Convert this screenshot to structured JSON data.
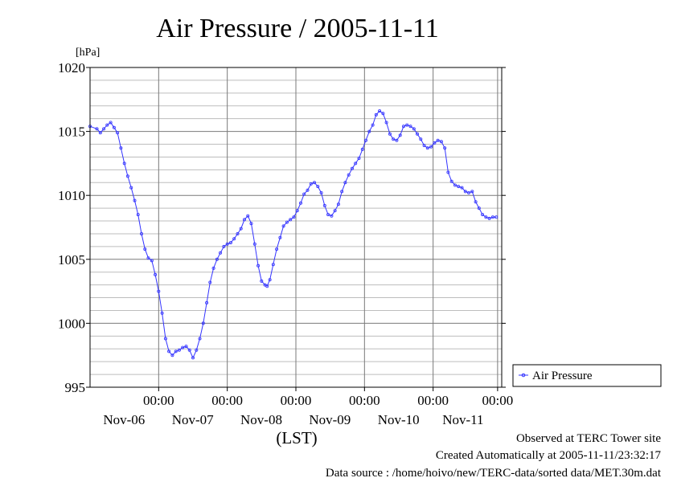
{
  "header": {
    "title": "Air Pressure / 2005-11-11",
    "unit_label": "[hPa]",
    "time_zone_label": "(LST)"
  },
  "legend": {
    "label": "Air Pressure"
  },
  "footer": {
    "line1": "Observed at TERC Tower site",
    "line2": "Created Automatically at 2005-11-11/23:32:17",
    "line3": "Data source : /home/hoivo/new/TERC-data/sorted  data/MET.30m.dat"
  },
  "chart_data": {
    "type": "line",
    "title": "Air Pressure / 2005-11-11",
    "ylabel": "[hPa]",
    "xlabel": "(LST)",
    "ylim": [
      995,
      1020
    ],
    "xlim_days": [
      0,
      6
    ],
    "yticks": [
      995,
      1000,
      1005,
      1010,
      1015,
      1020
    ],
    "xticks": [
      {
        "time": "00:00",
        "date": "Nov-06",
        "day": 1
      },
      {
        "time": "00:00",
        "date": "Nov-07",
        "day": 2
      },
      {
        "time": "00:00",
        "date": "Nov-08",
        "day": 3
      },
      {
        "time": "00:00",
        "date": "Nov-09",
        "day": 4
      },
      {
        "time": "00:00",
        "date": "Nov-10",
        "day": 5
      },
      {
        "time": "00:00",
        "date": "Nov-11",
        "day": 5.94
      }
    ],
    "grid": true,
    "legend_position": "right",
    "line_color": "#3333ff",
    "series": [
      {
        "name": "Air Pressure",
        "points": [
          [
            0.0,
            1015.4
          ],
          [
            0.1,
            1015.2
          ],
          [
            0.15,
            1014.9
          ],
          [
            0.2,
            1015.2
          ],
          [
            0.25,
            1015.5
          ],
          [
            0.3,
            1015.7
          ],
          [
            0.35,
            1015.3
          ],
          [
            0.4,
            1014.9
          ],
          [
            0.45,
            1013.7
          ],
          [
            0.5,
            1012.5
          ],
          [
            0.55,
            1011.5
          ],
          [
            0.6,
            1010.6
          ],
          [
            0.65,
            1009.6
          ],
          [
            0.7,
            1008.5
          ],
          [
            0.75,
            1007.0
          ],
          [
            0.8,
            1005.8
          ],
          [
            0.85,
            1005.1
          ],
          [
            0.9,
            1004.9
          ],
          [
            0.95,
            1003.8
          ],
          [
            1.0,
            1002.5
          ],
          [
            1.05,
            1000.8
          ],
          [
            1.1,
            998.8
          ],
          [
            1.15,
            997.8
          ],
          [
            1.2,
            997.5
          ],
          [
            1.25,
            997.8
          ],
          [
            1.3,
            997.9
          ],
          [
            1.35,
            998.1
          ],
          [
            1.4,
            998.2
          ],
          [
            1.45,
            997.9
          ],
          [
            1.5,
            997.3
          ],
          [
            1.55,
            997.9
          ],
          [
            1.6,
            998.8
          ],
          [
            1.65,
            1000.0
          ],
          [
            1.7,
            1001.6
          ],
          [
            1.75,
            1003.2
          ],
          [
            1.8,
            1004.3
          ],
          [
            1.85,
            1005.0
          ],
          [
            1.9,
            1005.5
          ],
          [
            1.95,
            1006.0
          ],
          [
            2.0,
            1006.2
          ],
          [
            2.05,
            1006.3
          ],
          [
            2.1,
            1006.6
          ],
          [
            2.15,
            1007.0
          ],
          [
            2.2,
            1007.4
          ],
          [
            2.25,
            1008.1
          ],
          [
            2.3,
            1008.4
          ],
          [
            2.35,
            1007.8
          ],
          [
            2.4,
            1006.2
          ],
          [
            2.45,
            1004.5
          ],
          [
            2.5,
            1003.3
          ],
          [
            2.55,
            1003.0
          ],
          [
            2.58,
            1002.9
          ],
          [
            2.62,
            1003.4
          ],
          [
            2.67,
            1004.6
          ],
          [
            2.72,
            1005.8
          ],
          [
            2.77,
            1006.7
          ],
          [
            2.82,
            1007.6
          ],
          [
            2.87,
            1007.9
          ],
          [
            2.92,
            1008.1
          ],
          [
            2.97,
            1008.3
          ],
          [
            3.02,
            1008.8
          ],
          [
            3.07,
            1009.4
          ],
          [
            3.12,
            1010.1
          ],
          [
            3.17,
            1010.4
          ],
          [
            3.22,
            1010.9
          ],
          [
            3.27,
            1011.0
          ],
          [
            3.32,
            1010.7
          ],
          [
            3.37,
            1010.2
          ],
          [
            3.42,
            1009.2
          ],
          [
            3.47,
            1008.5
          ],
          [
            3.52,
            1008.4
          ],
          [
            3.57,
            1008.8
          ],
          [
            3.62,
            1009.3
          ],
          [
            3.67,
            1010.3
          ],
          [
            3.72,
            1011.0
          ],
          [
            3.77,
            1011.6
          ],
          [
            3.82,
            1012.1
          ],
          [
            3.87,
            1012.5
          ],
          [
            3.92,
            1012.9
          ],
          [
            3.97,
            1013.6
          ],
          [
            4.02,
            1014.3
          ],
          [
            4.07,
            1015.0
          ],
          [
            4.12,
            1015.5
          ],
          [
            4.17,
            1016.3
          ],
          [
            4.22,
            1016.6
          ],
          [
            4.27,
            1016.4
          ],
          [
            4.32,
            1015.7
          ],
          [
            4.37,
            1014.8
          ],
          [
            4.42,
            1014.4
          ],
          [
            4.47,
            1014.3
          ],
          [
            4.52,
            1014.7
          ],
          [
            4.57,
            1015.4
          ],
          [
            4.62,
            1015.5
          ],
          [
            4.67,
            1015.4
          ],
          [
            4.72,
            1015.2
          ],
          [
            4.77,
            1014.8
          ],
          [
            4.82,
            1014.4
          ],
          [
            4.87,
            1013.9
          ],
          [
            4.92,
            1013.7
          ],
          [
            4.97,
            1013.8
          ],
          [
            5.02,
            1014.1
          ],
          [
            5.07,
            1014.3
          ],
          [
            5.12,
            1014.2
          ],
          [
            5.17,
            1013.7
          ],
          [
            5.22,
            1011.8
          ],
          [
            5.27,
            1011.1
          ],
          [
            5.32,
            1010.8
          ],
          [
            5.37,
            1010.7
          ],
          [
            5.42,
            1010.6
          ],
          [
            5.47,
            1010.3
          ],
          [
            5.52,
            1010.2
          ],
          [
            5.57,
            1010.3
          ],
          [
            5.62,
            1009.5
          ],
          [
            5.67,
            1009.0
          ],
          [
            5.72,
            1008.5
          ],
          [
            5.77,
            1008.3
          ],
          [
            5.82,
            1008.2
          ],
          [
            5.87,
            1008.3
          ],
          [
            5.92,
            1008.3
          ]
        ]
      }
    ]
  }
}
